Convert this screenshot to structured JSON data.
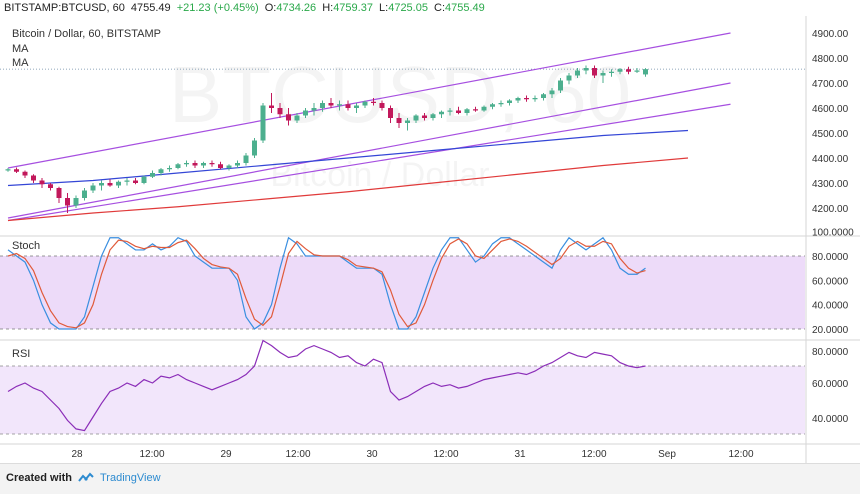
{
  "header": {
    "symbol": "BITSTAMP:BTCUSD, 60",
    "last": "4755.49",
    "change": "+21.23 (+0.45%)",
    "o_label": "O:",
    "o_value": "4734.26",
    "h_label": "H:",
    "h_value": "4759.37",
    "l_label": "L:",
    "l_value": "4725.05",
    "c_label": "C:",
    "c_value": "4755.49"
  },
  "watermark": {
    "main": "BTCUSD, 60",
    "sub": "Bitcoin / Dollar"
  },
  "legend": {
    "title": "Bitcoin / Dollar, 60, BITSTAMP",
    "ma1": "MA",
    "ma2": "MA"
  },
  "stoch_label": "Stoch",
  "rsi_label": "RSI",
  "footer": {
    "created_with": "Created with",
    "brand": "TradingView"
  },
  "colors": {
    "up": "#4caf8e",
    "down": "#c2185b",
    "channel": "#a64fe0",
    "ma_fast": "#3446d6",
    "ma_slow": "#e03a3a",
    "stoch_k": "#3a8fe0",
    "stoch_d": "#e05a3a",
    "rsi": "#8b2db8",
    "band_fill": "#e7cff7"
  },
  "chart_data": [
    {
      "type": "candlestick",
      "title": "Bitcoin / Dollar, 60, BITSTAMP",
      "y_ticks": [
        4900,
        4800,
        4700,
        4600,
        4500,
        4400,
        4300,
        4200
      ],
      "y_tick_labels": [
        "4900.00",
        "4800.00",
        "4700.00",
        "4600.00",
        "4500.00",
        "4400.00",
        "4300.00",
        "4200.00"
      ],
      "x_tick_labels": [
        "28",
        "12:00",
        "29",
        "12:00",
        "30",
        "12:00",
        "31",
        "12:00",
        "Sep",
        "12:00"
      ],
      "last_price_line": 4755.49,
      "candles": [
        [
          4350,
          4360,
          4345,
          4355
        ],
        [
          4355,
          4362,
          4340,
          4345
        ],
        [
          4345,
          4350,
          4320,
          4330
        ],
        [
          4330,
          4335,
          4300,
          4310
        ],
        [
          4310,
          4320,
          4280,
          4295
        ],
        [
          4295,
          4300,
          4270,
          4280
        ],
        [
          4280,
          4285,
          4220,
          4240
        ],
        [
          4240,
          4260,
          4180,
          4210
        ],
        [
          4210,
          4250,
          4200,
          4240
        ],
        [
          4240,
          4280,
          4230,
          4270
        ],
        [
          4270,
          4300,
          4260,
          4290
        ],
        [
          4290,
          4310,
          4270,
          4300
        ],
        [
          4300,
          4315,
          4285,
          4290
        ],
        [
          4290,
          4310,
          4280,
          4305
        ],
        [
          4305,
          4320,
          4290,
          4310
        ],
        [
          4310,
          4320,
          4295,
          4300
        ],
        [
          4300,
          4330,
          4295,
          4325
        ],
        [
          4325,
          4350,
          4320,
          4340
        ],
        [
          4340,
          4360,
          4330,
          4355
        ],
        [
          4355,
          4370,
          4345,
          4360
        ],
        [
          4360,
          4380,
          4355,
          4375
        ],
        [
          4375,
          4390,
          4365,
          4380
        ],
        [
          4380,
          4390,
          4360,
          4370
        ],
        [
          4370,
          4385,
          4360,
          4380
        ],
        [
          4380,
          4390,
          4365,
          4375
        ],
        [
          4375,
          4385,
          4355,
          4360
        ],
        [
          4360,
          4375,
          4350,
          4370
        ],
        [
          4370,
          4390,
          4360,
          4380
        ],
        [
          4380,
          4420,
          4370,
          4410
        ],
        [
          4410,
          4480,
          4400,
          4470
        ],
        [
          4470,
          4620,
          4460,
          4610
        ],
        [
          4610,
          4660,
          4580,
          4600
        ],
        [
          4600,
          4620,
          4560,
          4575
        ],
        [
          4575,
          4600,
          4530,
          4550
        ],
        [
          4550,
          4580,
          4540,
          4570
        ],
        [
          4570,
          4600,
          4560,
          4590
        ],
        [
          4590,
          4620,
          4570,
          4600
        ],
        [
          4600,
          4630,
          4585,
          4620
        ],
        [
          4620,
          4640,
          4600,
          4610
        ],
        [
          4610,
          4630,
          4590,
          4615
        ],
        [
          4615,
          4630,
          4590,
          4600
        ],
        [
          4600,
          4620,
          4580,
          4610
        ],
        [
          4610,
          4630,
          4600,
          4625
        ],
        [
          4625,
          4640,
          4610,
          4620
        ],
        [
          4620,
          4630,
          4590,
          4600
        ],
        [
          4600,
          4610,
          4540,
          4560
        ],
        [
          4560,
          4580,
          4520,
          4540
        ],
        [
          4540,
          4560,
          4510,
          4550
        ],
        [
          4550,
          4575,
          4540,
          4570
        ],
        [
          4570,
          4580,
          4550,
          4560
        ],
        [
          4560,
          4580,
          4550,
          4575
        ],
        [
          4575,
          4590,
          4560,
          4585
        ],
        [
          4585,
          4600,
          4570,
          4590
        ],
        [
          4590,
          4605,
          4575,
          4580
        ],
        [
          4580,
          4600,
          4570,
          4595
        ],
        [
          4595,
          4605,
          4585,
          4590
        ],
        [
          4590,
          4610,
          4585,
          4605
        ],
        [
          4605,
          4620,
          4595,
          4615
        ],
        [
          4615,
          4630,
          4605,
          4620
        ],
        [
          4620,
          4635,
          4610,
          4630
        ],
        [
          4630,
          4645,
          4620,
          4640
        ],
        [
          4640,
          4650,
          4625,
          4635
        ],
        [
          4635,
          4650,
          4625,
          4640
        ],
        [
          4640,
          4660,
          4630,
          4655
        ],
        [
          4655,
          4680,
          4640,
          4670
        ],
        [
          4670,
          4720,
          4660,
          4710
        ],
        [
          4710,
          4740,
          4695,
          4730
        ],
        [
          4730,
          4760,
          4720,
          4750
        ],
        [
          4750,
          4770,
          4735,
          4760
        ],
        [
          4760,
          4770,
          4720,
          4730
        ],
        [
          4730,
          4750,
          4700,
          4740
        ],
        [
          4740,
          4755,
          4725,
          4745
        ],
        [
          4745,
          4760,
          4735,
          4755
        ],
        [
          4755,
          4765,
          4735,
          4745
        ],
        [
          4745,
          4760,
          4740,
          4750
        ],
        [
          4734.26,
          4759.37,
          4725.05,
          4755.49
        ]
      ],
      "overlays": [
        {
          "name": "channel_upper",
          "points": [
            [
              0,
              4360
            ],
            [
              85,
              4900
            ]
          ]
        },
        {
          "name": "channel_lower",
          "points": [
            [
              0,
              4160
            ],
            [
              85,
              4700
            ]
          ]
        },
        {
          "name": "channel_mid",
          "points": [
            [
              0,
              4150
            ],
            [
              85,
              4615
            ]
          ]
        },
        {
          "name": "ma_fast",
          "points": [
            [
              0,
              4290
            ],
            [
              10,
              4310
            ],
            [
              20,
              4340
            ],
            [
              30,
              4370
            ],
            [
              40,
              4400
            ],
            [
              50,
              4430
            ],
            [
              60,
              4460
            ],
            [
              70,
              4490
            ],
            [
              80,
              4510
            ]
          ]
        },
        {
          "name": "ma_slow",
          "points": [
            [
              0,
              4150
            ],
            [
              10,
              4180
            ],
            [
              20,
              4205
            ],
            [
              30,
              4235
            ],
            [
              40,
              4265
            ],
            [
              50,
              4300
            ],
            [
              60,
              4335
            ],
            [
              70,
              4370
            ],
            [
              80,
              4400
            ]
          ]
        }
      ]
    },
    {
      "type": "line",
      "title": "Stoch",
      "y_ticks": [
        100,
        80,
        60,
        40,
        20
      ],
      "y_tick_labels": [
        "100.0000",
        "80.0000",
        "60.0000",
        "40.0000",
        "20.0000"
      ],
      "band": [
        20,
        80
      ],
      "series": [
        {
          "values": [
            85,
            80,
            75,
            60,
            40,
            25,
            20,
            20,
            20,
            30,
            55,
            80,
            95,
            95,
            90,
            85,
            85,
            90,
            85,
            88,
            95,
            92,
            80,
            75,
            70,
            70,
            70,
            60,
            30,
            20,
            25,
            40,
            70,
            95,
            90,
            80,
            80,
            80,
            80,
            80,
            75,
            70,
            70,
            70,
            65,
            40,
            20,
            20,
            30,
            50,
            70,
            85,
            95,
            95,
            85,
            75,
            80,
            90,
            95,
            95,
            90,
            85,
            80,
            75,
            70,
            85,
            95,
            90,
            85,
            90,
            95,
            85,
            70,
            65,
            65,
            70
          ]
        },
        {
          "values": [
            80,
            82,
            78,
            68,
            50,
            35,
            25,
            22,
            21,
            25,
            40,
            65,
            85,
            93,
            92,
            88,
            86,
            88,
            87,
            87,
            91,
            93,
            86,
            78,
            73,
            71,
            70,
            65,
            45,
            28,
            23,
            30,
            55,
            82,
            92,
            86,
            81,
            80,
            80,
            80,
            77,
            72,
            71,
            70,
            67,
            52,
            32,
            22,
            25,
            40,
            60,
            78,
            90,
            94,
            90,
            80,
            78,
            85,
            92,
            94,
            92,
            88,
            83,
            78,
            73,
            78,
            88,
            92,
            88,
            88,
            92,
            90,
            78,
            70,
            66,
            68
          ]
        }
      ]
    },
    {
      "type": "line",
      "title": "RSI",
      "y_ticks": [
        80,
        60,
        40
      ],
      "y_tick_labels": [
        "80.0000",
        "60.0000",
        "40.0000"
      ],
      "band": [
        30,
        70
      ],
      "series": [
        {
          "values": [
            55,
            58,
            60,
            57,
            55,
            50,
            45,
            38,
            33,
            32,
            40,
            48,
            55,
            57,
            60,
            58,
            62,
            60,
            64,
            63,
            65,
            62,
            60,
            58,
            56,
            58,
            60,
            62,
            65,
            70,
            85,
            82,
            78,
            75,
            76,
            80,
            82,
            80,
            78,
            75,
            76,
            72,
            70,
            74,
            72,
            55,
            50,
            52,
            55,
            58,
            60,
            58,
            59,
            57,
            58,
            60,
            62,
            63,
            64,
            65,
            66,
            65,
            67,
            70,
            72,
            75,
            78,
            76,
            75,
            78,
            77,
            76,
            72,
            70,
            69,
            70
          ]
        }
      ]
    }
  ]
}
